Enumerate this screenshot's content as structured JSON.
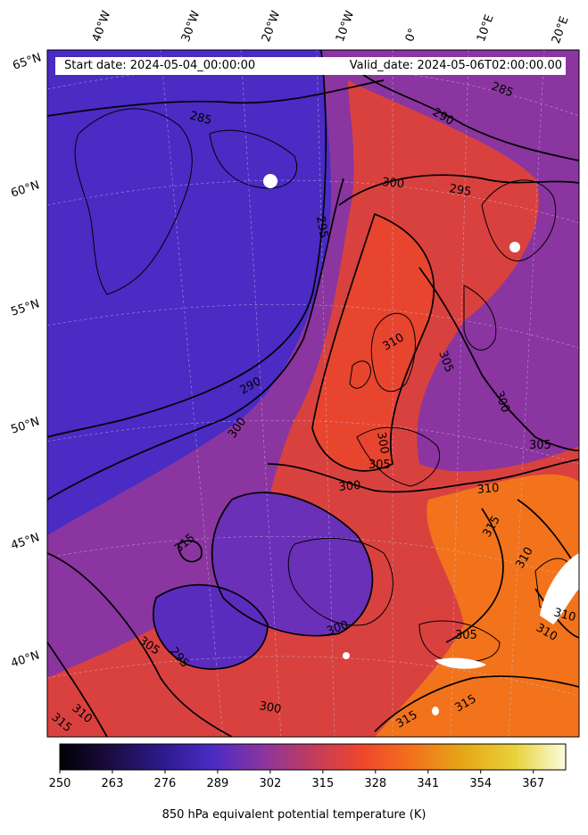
{
  "map": {
    "start_date_label": "Start date: 2024-05-04_00:00:00",
    "valid_date_label": "Valid_date: 2024-05-06T02:00:00.00",
    "longitude_labels": [
      "40°W",
      "30°W",
      "20°W",
      "10°W",
      "0°",
      "10°E",
      "20°E"
    ],
    "latitude_labels": [
      "65°N",
      "60°N",
      "55°N",
      "50°N",
      "45°N",
      "40°N"
    ],
    "contour_labels": [
      "285",
      "285",
      "290",
      "295",
      "295",
      "300",
      "290",
      "300",
      "310",
      "305",
      "300",
      "300",
      "305",
      "305",
      "300",
      "310",
      "315",
      "310",
      "310",
      "310",
      "305",
      "295",
      "305",
      "300",
      "300",
      "315",
      "315",
      "315",
      "310",
      "315"
    ],
    "colors": {
      "cold": "#4a2bc4",
      "mid": "#b5394f",
      "warm": "#f04a2a",
      "hot": "#f2731b",
      "contour": "#000000"
    }
  },
  "colorbar": {
    "title": "850 hPa equivalent potential temperature (K)",
    "min": 250,
    "max": 375,
    "tick_values": [
      "250",
      "263",
      "276",
      "289",
      "302",
      "315",
      "328",
      "341",
      "354",
      "367"
    ],
    "colormap": [
      "#000004",
      "#1b0c41",
      "#2c1a8a",
      "#4a2bc4",
      "#8a35a0",
      "#c23c5c",
      "#f0472c",
      "#f2731b",
      "#e6a817",
      "#e8d23a",
      "#fbfce0"
    ]
  }
}
